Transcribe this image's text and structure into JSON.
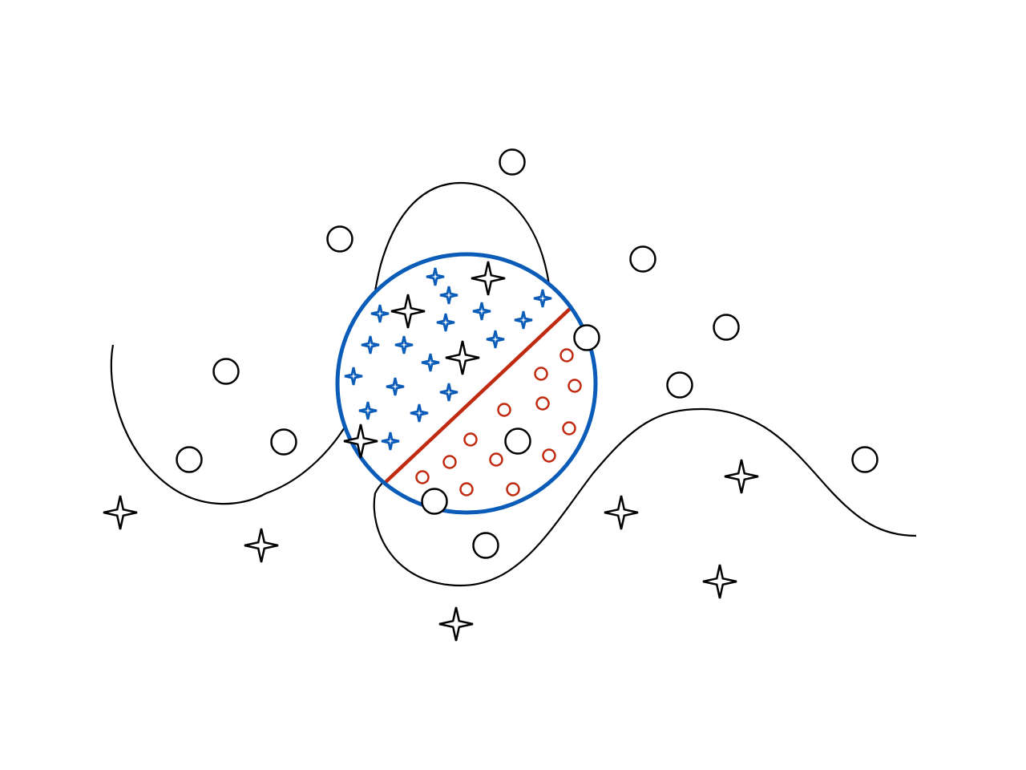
{
  "colors": {
    "background": "#ffffff",
    "outline": "#000000",
    "blue": "#0a5cb8",
    "red": "#c02a10"
  },
  "icons": {
    "outer_star": "four-point-star-icon",
    "outer_circle": "hollow-circle-icon",
    "inner_blue_star": "four-point-star-icon",
    "inner_red_circle": "hollow-circle-icon"
  },
  "diagram": {
    "description_items": [
      "decision-boundary-curve",
      "local-neighborhood-circle",
      "local-linear-separator"
    ]
  }
}
